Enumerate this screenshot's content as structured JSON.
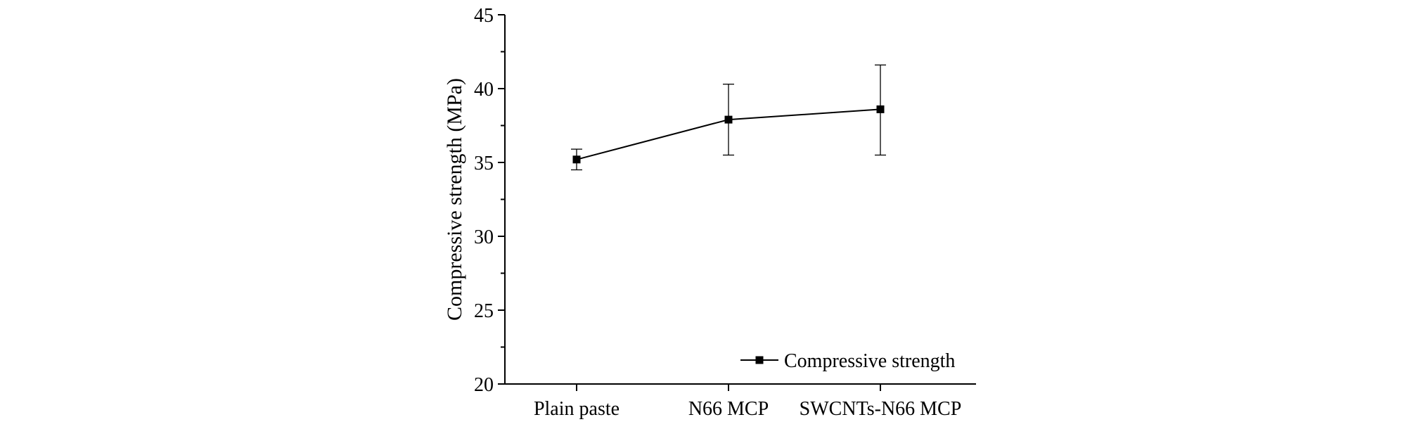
{
  "chart_data": {
    "type": "line",
    "title": "",
    "xlabel": "",
    "ylabel": "Compressive strength (MPa)",
    "categories": [
      "Plain paste",
      "N66 MCP",
      "SWCNTs-N66 MCP"
    ],
    "ylim": [
      20,
      45
    ],
    "yticks": [
      20,
      25,
      30,
      35,
      40,
      45
    ],
    "grid": false,
    "legend_position": "bottom-right",
    "series": [
      {
        "name": "Compressive strength",
        "values": [
          35.2,
          37.9,
          38.6
        ],
        "error_low": [
          34.5,
          35.5,
          35.5
        ],
        "error_high": [
          35.9,
          40.3,
          41.6
        ],
        "marker": "square",
        "color": "#000000"
      }
    ]
  }
}
